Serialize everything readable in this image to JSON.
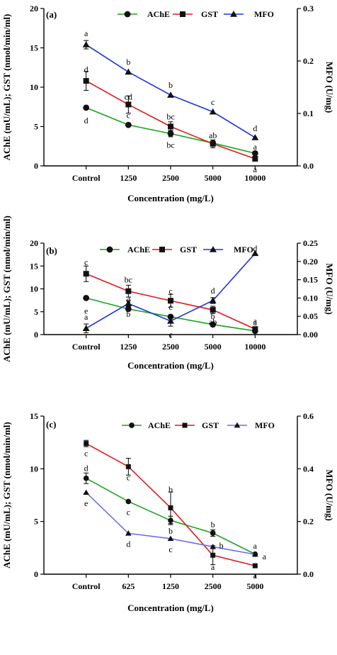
{
  "chart_data": [
    {
      "type": "line",
      "panel_label": "(a)",
      "categories": [
        "Control",
        "1250",
        "2500",
        "5000",
        "10000"
      ],
      "xlabel": "Concentration (mg/L)",
      "ylabel": "AChE (mU/mL); GST  (nmol/min/ml)",
      "y2label": "MFO (U/mg)",
      "ylim": [
        0,
        20
      ],
      "y2lim": [
        0,
        0.3
      ],
      "yticks": [
        0,
        5,
        10,
        15,
        20
      ],
      "yticklabels": [
        "0",
        "5",
        "10",
        "15",
        "20"
      ],
      "y2ticks": [
        0,
        0.1,
        0.2,
        0.3
      ],
      "y2ticklabels": [
        "0.0",
        "0.1",
        "0.2",
        "0.3"
      ],
      "legend_position": "top",
      "series": [
        {
          "name": "AChE",
          "axis": "left",
          "color": "#1aa31a",
          "marker": "circle",
          "values": [
            7.4,
            5.2,
            4.1,
            2.9,
            1.6
          ],
          "errors": [
            0,
            0,
            0.4,
            0.2,
            0
          ],
          "letters": [
            "d",
            "c",
            "bc",
            "ab",
            "a"
          ]
        },
        {
          "name": "GST",
          "axis": "left",
          "color": "#e0191b",
          "marker": "square",
          "values": [
            10.8,
            7.8,
            5.0,
            2.8,
            0.9
          ],
          "errors": [
            1.2,
            1.1,
            0.6,
            0.5,
            0.2
          ],
          "letters": [
            "d",
            "cd",
            "bc",
            "",
            "a"
          ]
        },
        {
          "name": "MFO",
          "axis": "right",
          "color": "#1f33e0",
          "marker": "triangle",
          "values": [
            0.231,
            0.179,
            0.135,
            0.103,
            0.054
          ],
          "errors": [
            0.008,
            0,
            0,
            0,
            0
          ],
          "letters": [
            "a",
            "b",
            "b",
            "c",
            "d"
          ]
        }
      ]
    },
    {
      "type": "line",
      "panel_label": "(b)",
      "categories": [
        "Control",
        "1250",
        "2500",
        "5000",
        "10000"
      ],
      "xlabel": "Concentration (mg/L)",
      "ylabel": "AChE (mU/mL); GST  (nmol/min/ml)",
      "y2label": "MFO (U/mg)",
      "ylim": [
        0,
        20
      ],
      "y2lim": [
        0,
        0.25
      ],
      "yticks": [
        0,
        5,
        10,
        15,
        20
      ],
      "yticklabels": [
        "0",
        "5",
        "10",
        "15",
        "20"
      ],
      "y2ticks": [
        0,
        0.05,
        0.1,
        0.15,
        0.2,
        0.25
      ],
      "y2ticklabels": [
        "0.00",
        "0.05",
        "0.10",
        "0.15",
        "0.20",
        "0.25"
      ],
      "legend_position": "top",
      "series": [
        {
          "name": "AChE",
          "axis": "left",
          "color": "#1aa31a",
          "marker": "circle",
          "values": [
            8.0,
            5.6,
            3.9,
            2.2,
            0.8
          ],
          "errors": [
            0,
            0,
            0,
            0,
            0
          ],
          "letters": [
            "e",
            "d",
            "c",
            "b",
            "a"
          ]
        },
        {
          "name": "GST",
          "axis": "left",
          "color": "#e0191b",
          "marker": "square",
          "values": [
            13.3,
            9.5,
            7.4,
            5.4,
            1.2
          ],
          "errors": [
            1.7,
            1.3,
            1.4,
            0.8,
            0.5
          ],
          "letters": [
            "c",
            "bc",
            "c",
            "ab",
            "a"
          ]
        },
        {
          "name": "MFO",
          "axis": "right",
          "color": "#1f33e0",
          "marker": "triangle",
          "values": [
            0.017,
            0.085,
            0.037,
            0.093,
            0.222
          ],
          "errors": [
            0.012,
            0.008,
            0.014,
            0.008,
            0
          ],
          "letters": [
            "a",
            "b",
            "c",
            "d",
            "d"
          ]
        }
      ]
    },
    {
      "type": "line",
      "panel_label": "(c)",
      "categories": [
        "Control",
        "625",
        "1250",
        "2500",
        "5000"
      ],
      "xlabel": "Concentration (mg/L)",
      "ylabel": "AChE (mU/mL); GST  (nmol/min/ml)",
      "y2label": "MFO (U/mg)",
      "ylim": [
        0,
        15
      ],
      "y2lim": [
        0,
        0.6
      ],
      "yticks": [
        0,
        5,
        10,
        15
      ],
      "yticklabels": [
        "0",
        "5",
        "10",
        "15"
      ],
      "y2ticks": [
        0,
        0.2,
        0.4,
        0.6
      ],
      "y2ticklabels": [
        "0.0",
        "0.2",
        "0.4",
        "0.6"
      ],
      "legend_position": "top",
      "series": [
        {
          "name": "AChE",
          "axis": "left",
          "color": "#1aa31a",
          "marker": "circle",
          "values": [
            9.1,
            6.9,
            5.1,
            3.9,
            1.9
          ],
          "errors": [
            0.5,
            0,
            0.4,
            0.3,
            0
          ],
          "letters": [
            "d",
            "c",
            "b",
            "b",
            "a"
          ]
        },
        {
          "name": "GST",
          "axis": "left",
          "color": "#e0191b",
          "marker": "square",
          "values": [
            12.4,
            10.2,
            6.3,
            1.8,
            0.8
          ],
          "errors": [
            0.3,
            0.8,
            1.5,
            0.9,
            0
          ],
          "letters": [
            "c",
            "c",
            "b",
            "a",
            "a"
          ]
        },
        {
          "name": "MFO",
          "axis": "right",
          "color": "#6b6bee",
          "marker": "triangle",
          "values": [
            0.31,
            0.155,
            0.135,
            0.104,
            0.075
          ],
          "errors": [
            0,
            0,
            0,
            0,
            0
          ],
          "letters": [
            "e",
            "d",
            "c",
            "b",
            "a"
          ]
        }
      ]
    }
  ]
}
